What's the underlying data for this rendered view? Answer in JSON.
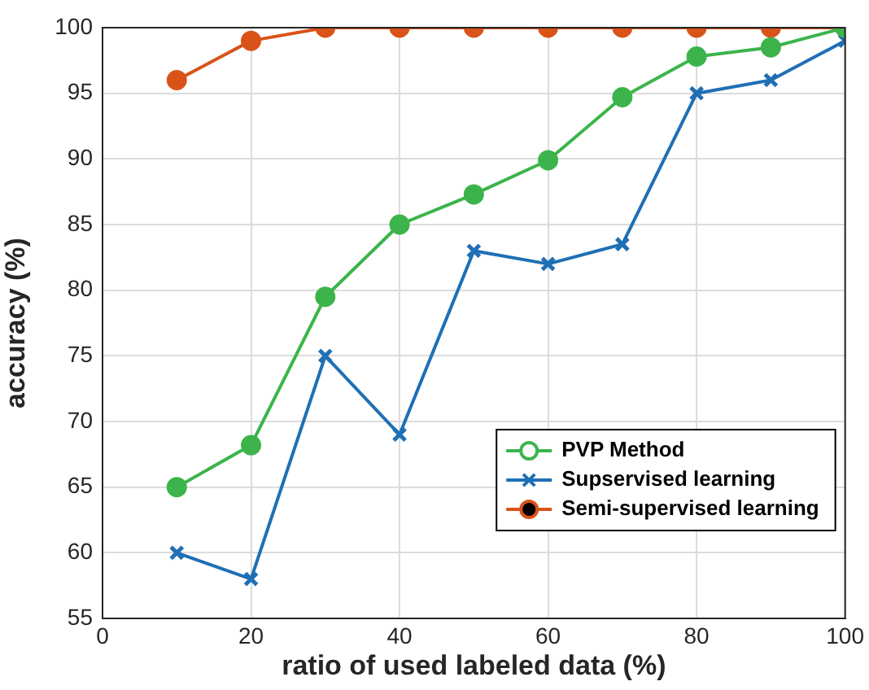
{
  "chart_data": {
    "type": "line",
    "xlabel": "ratio of used labeled data (%)",
    "ylabel": "accuracy (%)",
    "x": [
      10,
      20,
      30,
      40,
      50,
      60,
      70,
      80,
      90,
      100
    ],
    "series": [
      {
        "name": "PVP Method",
        "color": "#3cb44b",
        "marker": "circle",
        "values": [
          65,
          68.2,
          79.5,
          85,
          87.3,
          89.9,
          94.7,
          97.8,
          98.5,
          100
        ]
      },
      {
        "name": "Supservised learning",
        "color": "#1f6fb5",
        "marker": "cross",
        "values": [
          60,
          58,
          75,
          69,
          83,
          82,
          83.5,
          95,
          96,
          99
        ]
      },
      {
        "name": "Semi-supervised learning",
        "color": "#d95319",
        "marker": "circle",
        "values": [
          96,
          99,
          100,
          100,
          100,
          100,
          100,
          100,
          100,
          100
        ]
      }
    ],
    "xlim": [
      0,
      100
    ],
    "xticks": [
      0,
      20,
      40,
      60,
      80,
      100
    ],
    "ylim": [
      55,
      100
    ],
    "yticks": [
      55,
      60,
      65,
      70,
      75,
      80,
      85,
      90,
      95,
      100
    ],
    "grid": true,
    "legend": "bottom right",
    "line_style": "solid"
  }
}
